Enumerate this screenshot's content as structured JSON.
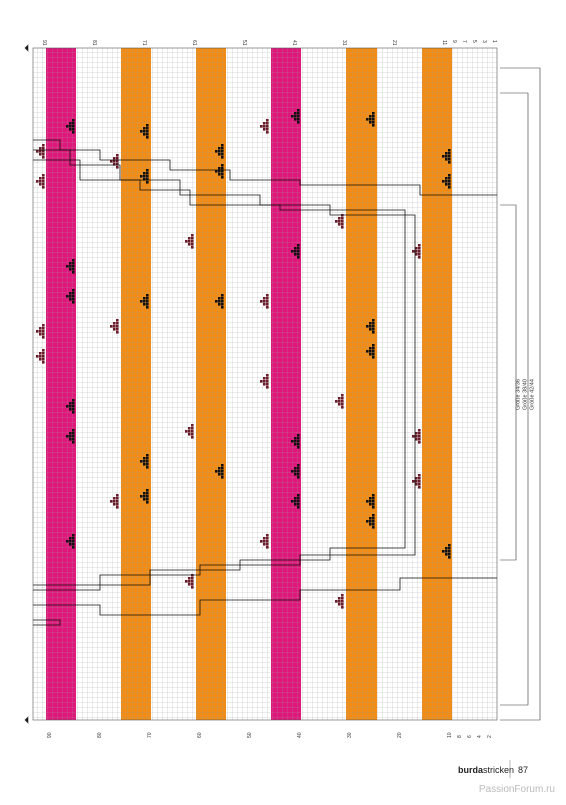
{
  "chart_top_rows": [
    91,
    81,
    71,
    61,
    51,
    41,
    31,
    21,
    11,
    9,
    7,
    5,
    3,
    1
  ],
  "chart_bottom_rows": [
    90,
    80,
    70,
    60,
    50,
    40,
    30,
    20,
    10,
    8,
    6,
    4,
    2
  ],
  "sizes": [
    "Größe 34/36",
    "Größe 38/40",
    "Größe 42/44"
  ],
  "footer": {
    "brand": "burda",
    "brand_suffix": "stricken",
    "page": "87"
  },
  "watermark": "PassionForum.ru"
}
